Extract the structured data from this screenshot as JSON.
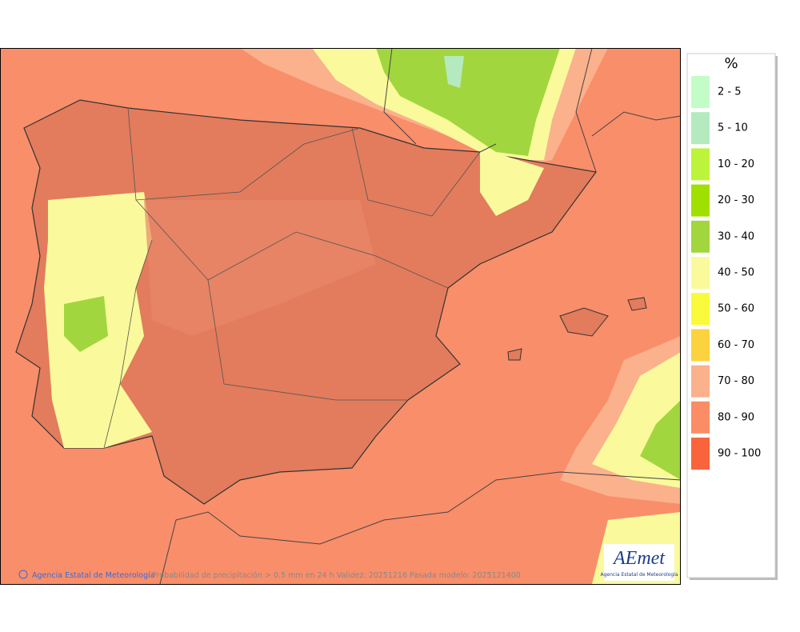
{
  "map": {
    "caption": "Probabilidad de precipitación > 0.5 mm en 24 h Validez: 20251216 Pasada modelo: 2025121400",
    "credit": "Agencia Estatal de Meteorología",
    "logo": {
      "name": "AEmet",
      "subtitle": "Agencia Estatal de Meteorología"
    }
  },
  "legend": {
    "title": "%",
    "items": [
      {
        "label": "2 - 5",
        "color": "#c4fcc8"
      },
      {
        "label": "5 - 10",
        "color": "#b4eabe"
      },
      {
        "label": "10 - 20",
        "color": "#bcf43c"
      },
      {
        "label": "20 - 30",
        "color": "#a0e000"
      },
      {
        "label": "30 - 40",
        "color": "#a2d63e"
      },
      {
        "label": "40 - 50",
        "color": "#fafa9c"
      },
      {
        "label": "50 - 60",
        "color": "#fafa3c"
      },
      {
        "label": "60 - 70",
        "color": "#fcd23e"
      },
      {
        "label": "70 - 80",
        "color": "#fbb18c"
      },
      {
        "label": "80 - 90",
        "color": "#fa8d66"
      },
      {
        "label": "90 - 100",
        "color": "#fa643c"
      }
    ]
  }
}
